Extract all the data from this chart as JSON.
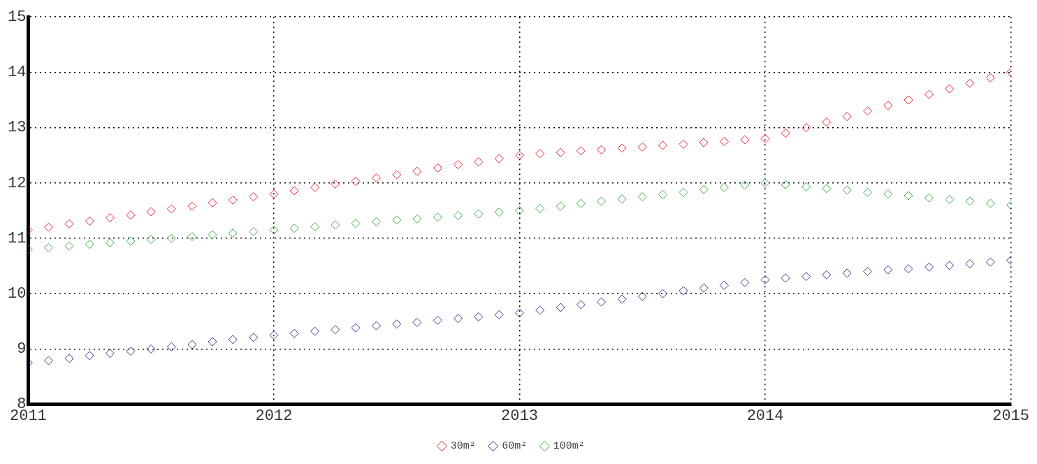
{
  "chart_data": {
    "type": "scatter",
    "x": [
      2011,
      2011.083,
      2011.167,
      2011.25,
      2011.333,
      2011.417,
      2011.5,
      2011.583,
      2011.667,
      2011.75,
      2011.833,
      2011.917,
      2012,
      2012.083,
      2012.167,
      2012.25,
      2012.333,
      2012.417,
      2012.5,
      2012.583,
      2012.667,
      2012.75,
      2012.833,
      2012.917,
      2013,
      2013.083,
      2013.167,
      2013.25,
      2013.333,
      2013.417,
      2013.5,
      2013.583,
      2013.667,
      2013.75,
      2013.833,
      2013.917,
      2014,
      2014.083,
      2014.167,
      2014.25,
      2014.333,
      2014.417,
      2014.5,
      2014.583,
      2014.667,
      2014.75,
      2014.833,
      2014.917,
      2015
    ],
    "series": [
      {
        "name": "30m²",
        "color": "#e8202a",
        "values": [
          11.15,
          11.2,
          11.26,
          11.31,
          11.37,
          11.42,
          11.48,
          11.53,
          11.58,
          11.64,
          11.69,
          11.75,
          11.8,
          11.86,
          11.92,
          11.98,
          12.03,
          12.09,
          12.15,
          12.21,
          12.27,
          12.33,
          12.38,
          12.44,
          12.5,
          12.53,
          12.55,
          12.58,
          12.6,
          12.63,
          12.65,
          12.68,
          12.7,
          12.73,
          12.75,
          12.78,
          12.8,
          12.9,
          13.0,
          13.1,
          13.2,
          13.3,
          13.4,
          13.5,
          13.6,
          13.7,
          13.8,
          13.9,
          14.0
        ]
      },
      {
        "name": "60m²",
        "color": "#2e3a8c",
        "values": [
          8.75,
          8.79,
          8.83,
          8.88,
          8.92,
          8.96,
          9.0,
          9.04,
          9.08,
          9.13,
          9.17,
          9.21,
          9.25,
          9.28,
          9.32,
          9.35,
          9.38,
          9.42,
          9.45,
          9.48,
          9.52,
          9.55,
          9.58,
          9.62,
          9.65,
          9.7,
          9.75,
          9.8,
          9.85,
          9.9,
          9.95,
          10.0,
          10.05,
          10.1,
          10.15,
          10.2,
          10.25,
          10.28,
          10.31,
          10.34,
          10.37,
          10.4,
          10.43,
          10.45,
          10.48,
          10.51,
          10.54,
          10.57,
          10.6
        ]
      },
      {
        "name": "100m²",
        "color": "#3cae3c",
        "values": [
          10.8,
          10.83,
          10.86,
          10.89,
          10.92,
          10.95,
          10.98,
          11.0,
          11.03,
          11.06,
          11.09,
          11.12,
          11.15,
          11.18,
          11.21,
          11.24,
          11.27,
          11.3,
          11.33,
          11.35,
          11.38,
          11.41,
          11.44,
          11.47,
          11.5,
          11.54,
          11.58,
          11.63,
          11.67,
          11.71,
          11.75,
          11.79,
          11.83,
          11.88,
          11.92,
          11.96,
          12.0,
          11.97,
          11.93,
          11.9,
          11.87,
          11.83,
          11.8,
          11.77,
          11.73,
          11.7,
          11.67,
          11.63,
          11.6
        ]
      }
    ],
    "xlim": [
      2011,
      2015
    ],
    "xticks": [
      2011,
      2012,
      2013,
      2014,
      2015
    ],
    "ylim": [
      8,
      15
    ],
    "yticks": [
      8,
      9,
      10,
      11,
      12,
      13,
      14,
      15
    ],
    "grid": true,
    "legend": "bottom",
    "marker": "diamond"
  }
}
